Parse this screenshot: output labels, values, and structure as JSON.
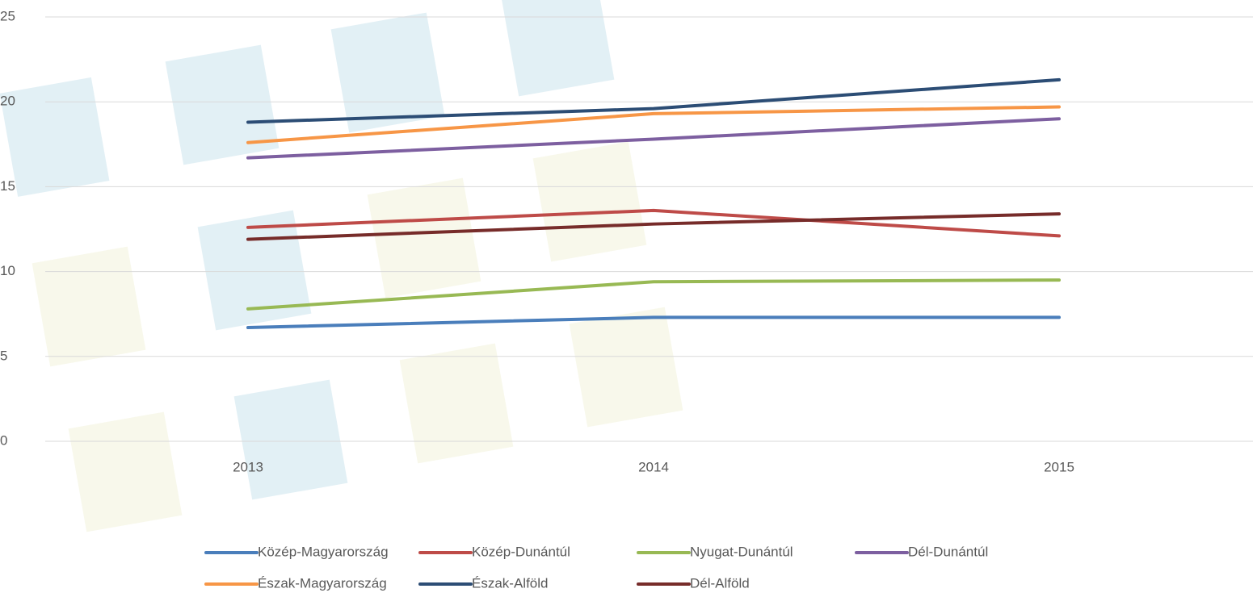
{
  "chart_data": {
    "type": "line",
    "categories": [
      "2013",
      "2014",
      "2015"
    ],
    "series": [
      {
        "name": "Közép-Magyarország",
        "color": "#4a7ebb",
        "values": [
          6.7,
          7.3,
          7.3
        ]
      },
      {
        "name": "Közép-Dunántúl",
        "color": "#be4b48",
        "values": [
          12.6,
          13.6,
          12.1
        ]
      },
      {
        "name": "Nyugat-Dunántúl",
        "color": "#98b954",
        "values": [
          7.8,
          9.4,
          9.5
        ]
      },
      {
        "name": "Dél-Dunántúl",
        "color": "#7d5fa0",
        "values": [
          16.7,
          17.8,
          19.0
        ]
      },
      {
        "name": "Észak-Magyarország",
        "color": "#f79646",
        "values": [
          17.6,
          19.3,
          19.7
        ]
      },
      {
        "name": "Észak-Alföld",
        "color": "#2c4d75",
        "values": [
          18.8,
          19.6,
          21.3
        ]
      },
      {
        "name": "Dél-Alföld",
        "color": "#772c2a",
        "values": [
          11.9,
          12.8,
          13.4
        ]
      }
    ],
    "ylim": [
      0,
      25
    ],
    "yticks": [
      0,
      5,
      10,
      15,
      20,
      25
    ],
    "grid": true,
    "legend": "bottom"
  }
}
